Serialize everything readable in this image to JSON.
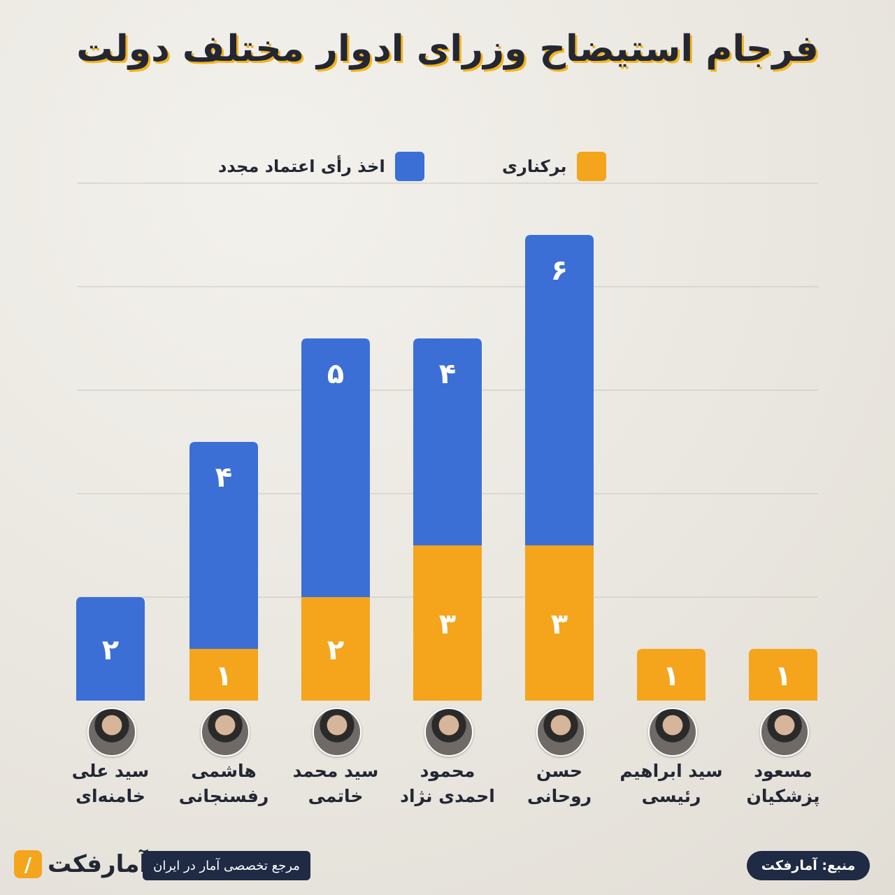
{
  "title": "فرجام استیضاح وزرای ادوار مختلف دولت",
  "colors": {
    "reconfidence": "#3b6fd6",
    "dismissal": "#f4a51c",
    "grid": "#c9c5bd",
    "text": "#232733"
  },
  "chart_data": {
    "type": "bar",
    "stacked": true,
    "categories": [
      {
        "line1": "مسعود",
        "line2": "پزشکیان"
      },
      {
        "line1": "سید ابراهیم",
        "line2": "رئیسی"
      },
      {
        "line1": "حسن",
        "line2": "روحانی"
      },
      {
        "line1": "محمود",
        "line2": "احمدی نژاد"
      },
      {
        "line1": "سید محمد",
        "line2": "خاتمی"
      },
      {
        "line1": "هاشمی",
        "line2": "رفسنجانی"
      },
      {
        "line1": "سید علی",
        "line2": "خامنه‌ای"
      }
    ],
    "series": [
      {
        "name": "برکناری",
        "values": [
          1,
          1,
          3,
          3,
          2,
          1,
          0
        ],
        "labels": [
          "۱",
          "۱",
          "۳",
          "۳",
          "۲",
          "۱",
          ""
        ]
      },
      {
        "name": "اخذ رأی اعتماد مجدد",
        "values": [
          0,
          0,
          6,
          4,
          5,
          4,
          2
        ],
        "labels": [
          "",
          "",
          "۶",
          "۴",
          "۵",
          "۴",
          "۲"
        ]
      }
    ],
    "ylim": [
      0,
      10
    ],
    "grid": true,
    "legend": "top"
  },
  "footer": {
    "logo_text": "آمارفکت",
    "tagline": "مرجع تخصصی آمار در ایران",
    "source": "منبع: آمارفکت"
  }
}
